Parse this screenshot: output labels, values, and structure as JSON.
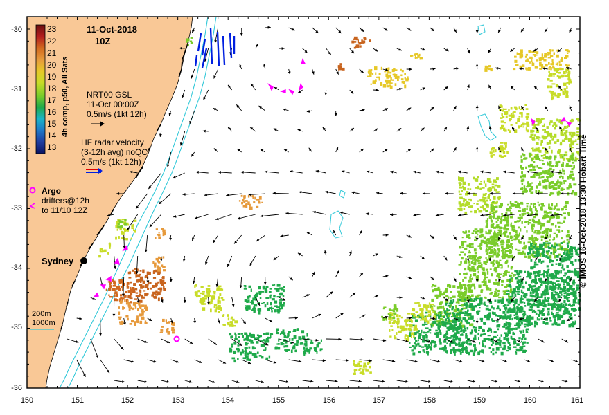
{
  "header": {
    "date": "11-Oct-2018",
    "time": "10Z"
  },
  "colorbar": {
    "label": "4h comp, p50, All Sats",
    "ticks": [
      "23",
      "22",
      "21",
      "20",
      "19",
      "18",
      "17",
      "16",
      "15",
      "14",
      "13"
    ],
    "stops": [
      "#6b0f0f",
      "#b41e1e",
      "#d2691e",
      "#e69a3c",
      "#e6c828",
      "#c8dc28",
      "#7acc2a",
      "#1faa4a",
      "#1ab4c8",
      "#1e78c8",
      "#1e3ca0",
      "#0a1464"
    ]
  },
  "legend": {
    "gsl_title": "NRT00 GSL",
    "gsl_time": "11-Oct 00:00Z",
    "gsl_scale": "0.5m/s (1kt 12h)",
    "hf_title": "HF radar velocity",
    "hf_avg": "(3-12h avg) noQC",
    "hf_scale": "0.5m/s (1kt 12h)",
    "argo": "Argo",
    "drifters_line1": "drifters@12h",
    "drifters_line2": "to 11/10 12Z",
    "depth_200": "200m",
    "depth_1000": "1000m"
  },
  "place": {
    "city": "Sydney"
  },
  "axes": {
    "x_ticks": [
      "150",
      "151",
      "152",
      "153",
      "154",
      "155",
      "156",
      "157",
      "158",
      "159",
      "160",
      "161"
    ],
    "y_ticks": [
      "-30",
      "-31",
      "-32",
      "-33",
      "-34",
      "-35",
      "-36"
    ]
  },
  "credit": "© IMOS 16-Oct-2018 13:30 Hobart Time",
  "colors": {
    "land": "#f9c896",
    "arrow": "#000000",
    "isobath": "#30c8d8",
    "hf_blue": "#0020e0",
    "drifter": "#ff00ff"
  }
}
